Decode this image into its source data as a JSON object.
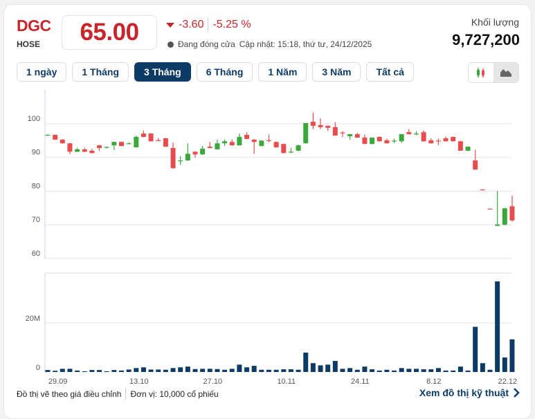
{
  "header": {
    "symbol": "DGC",
    "exchange": "HOSE",
    "price": "65.00",
    "change": "-3.60",
    "change_pct": "-5.25 %",
    "status": "Đang đóng cửa",
    "updated": "Cập nhật: 15:18, thứ tư, 24/12/2025",
    "volume_label": "Khối lượng",
    "volume_value": "9,727,200"
  },
  "tabs": [
    {
      "label": "1 ngày"
    },
    {
      "label": "1 Tháng"
    },
    {
      "label": "3 Tháng",
      "active": true
    },
    {
      "label": "6 Tháng"
    },
    {
      "label": "1 Năm"
    },
    {
      "label": "3 Năm"
    },
    {
      "label": "Tất cả"
    }
  ],
  "chart_type_icons": [
    "candlestick-icon",
    "mountain-chart-icon"
  ],
  "colors": {
    "up": "#3aa83a",
    "down": "#e84c4c",
    "volume": "#0d3b66",
    "accent": "#0d3b66",
    "price": "#c8242b"
  },
  "footer": {
    "note": "Đồ thị vẽ theo giá điều chỉnh",
    "unit": "Đơn vị: 10,000 cổ phiếu",
    "link": "Xem đồ thị kỹ thuật"
  },
  "chart_data": {
    "type": "candlestick",
    "price_ticks": [
      100,
      90,
      80,
      70,
      60
    ],
    "price_range": [
      58,
      106
    ],
    "volume_ticks": [
      {
        "v": 20,
        "label": "20M"
      },
      {
        "v": 0,
        "label": "0"
      }
    ],
    "volume_range": [
      0,
      40
    ],
    "x_labels": [
      {
        "i": 1,
        "label": "29.09"
      },
      {
        "i": 12,
        "label": "13.10"
      },
      {
        "i": 22,
        "label": "27.10"
      },
      {
        "i": 32,
        "label": "10.11"
      },
      {
        "i": 42,
        "label": "24.11"
      },
      {
        "i": 52,
        "label": "8.12"
      },
      {
        "i": 62,
        "label": "22.12"
      }
    ],
    "ohlc": [
      [
        96.7,
        96.9,
        96.5,
        96.7
      ],
      [
        96.7,
        96.8,
        95.2,
        95.3
      ],
      [
        95.3,
        95.4,
        94.1,
        94.2
      ],
      [
        94.2,
        94.3,
        91,
        91.7
      ],
      [
        91.7,
        92.9,
        91.6,
        92.4
      ],
      [
        92.4,
        92.9,
        91.6,
        91.7
      ],
      [
        92,
        92.6,
        91.2,
        91.3
      ],
      [
        93.6,
        93.7,
        91.9,
        92.8
      ],
      [
        92.9,
        93.3,
        92.7,
        93.1
      ],
      [
        93.6,
        94.7,
        92.2,
        94.6
      ],
      [
        94.6,
        94.7,
        93.3,
        93.4
      ],
      [
        94.1,
        94.5,
        93.9,
        94.2
      ],
      [
        93,
        96.5,
        92.9,
        96.1
      ],
      [
        97.1,
        98,
        96,
        96.1
      ],
      [
        97.1,
        97.2,
        94.7,
        94.8
      ],
      [
        95.1,
        95.8,
        94.8,
        95
      ],
      [
        95.7,
        95.8,
        93.1,
        93.2
      ],
      [
        92.8,
        94.4,
        86.7,
        86.8
      ],
      [
        88.9,
        90.4,
        87.8,
        89.1
      ],
      [
        89.1,
        94.2,
        89,
        91.1
      ],
      [
        91.7,
        91.8,
        90,
        90.9
      ],
      [
        90.9,
        93.4,
        90.8,
        92.6
      ],
      [
        93.2,
        94.6,
        92.7,
        92.8
      ],
      [
        92.4,
        95.3,
        92.3,
        94.2
      ],
      [
        94.2,
        95.4,
        93.4,
        94.8
      ],
      [
        94.6,
        95.4,
        93.5,
        93.6
      ],
      [
        93.6,
        97.1,
        93.5,
        96.1
      ],
      [
        96.7,
        97.5,
        95.4,
        95.5
      ],
      [
        95.3,
        95.4,
        91.1,
        94.6
      ],
      [
        93.4,
        95.1,
        93.3,
        95
      ],
      [
        95.1,
        96.7,
        94.5,
        95
      ],
      [
        94.6,
        94.7,
        92.9,
        93
      ],
      [
        94,
        94.1,
        91.2,
        91.3
      ],
      [
        91.6,
        92.9,
        91.3,
        91.7
      ],
      [
        92,
        93.8,
        91.9,
        93.6
      ],
      [
        94.2,
        100.2,
        94.1,
        100.2
      ],
      [
        100.6,
        103.3,
        98.4,
        99.4
      ],
      [
        99.6,
        101.6,
        98.4,
        99
      ],
      [
        99.4,
        99.5,
        97.9,
        98.8
      ],
      [
        99,
        100.4,
        96.4,
        96.5
      ],
      [
        97.4,
        97.8,
        96.1,
        97.3
      ],
      [
        96.3,
        96.9,
        95.3,
        96.9
      ],
      [
        96.9,
        97.3,
        95.8,
        95.9
      ],
      [
        95.9,
        96.8,
        94,
        94
      ],
      [
        94,
        95.9,
        93.9,
        95.9
      ],
      [
        96.1,
        96.2,
        94.7,
        94.8
      ],
      [
        95.1,
        95.6,
        94.1,
        94.2
      ],
      [
        94.9,
        95.6,
        94.3,
        95
      ],
      [
        94.8,
        96.9,
        94.3,
        96.9
      ],
      [
        97.5,
        98.4,
        96.8,
        96.9
      ],
      [
        97,
        97.8,
        96.6,
        97.1
      ],
      [
        97.5,
        98,
        94.7,
        94.8
      ],
      [
        95.1,
        95.7,
        94.1,
        94.2
      ],
      [
        95,
        95.6,
        93.7,
        94.9
      ],
      [
        95.7,
        96.2,
        94.7,
        94.8
      ],
      [
        96.1,
        96.2,
        94.7,
        94.8
      ],
      [
        94.8,
        94.9,
        92,
        92
      ],
      [
        92,
        93.2,
        91.9,
        93.2
      ],
      [
        89.1,
        92.2,
        86.4,
        86.4
      ],
      [
        80.5,
        80.5,
        80.4,
        80.4
      ],
      [
        74.8,
        74.8,
        74.7,
        74.7
      ],
      [
        69.7,
        80,
        69.6,
        70.1
      ],
      [
        70,
        75,
        69.9,
        74.9
      ],
      [
        75.5,
        78.6,
        70.9,
        71.3
      ]
    ],
    "volume_millions": [
      0.8,
      0.5,
      1.3,
      1.3,
      0.6,
      0.3,
      0.8,
      0.8,
      0.3,
      0.8,
      0.6,
      1,
      1.6,
      1.9,
      1,
      1,
      0.9,
      1.6,
      1.9,
      2.2,
      1.2,
      1.3,
      1.3,
      1.2,
      0.9,
      1.3,
      3,
      1.9,
      2.5,
      0.9,
      0.9,
      0.9,
      1.1,
      1.1,
      0.9,
      7.9,
      3.6,
      2.7,
      3,
      4.5,
      1.3,
      1.6,
      0.9,
      2.2,
      1.1,
      0.6,
      0.9,
      0.6,
      1.6,
      1.3,
      1.3,
      1.1,
      1.1,
      1.6,
      0.6,
      0.6,
      2.2,
      0.6,
      18.4,
      3.6,
      0.9,
      36.9,
      5.9,
      13.3
    ]
  }
}
